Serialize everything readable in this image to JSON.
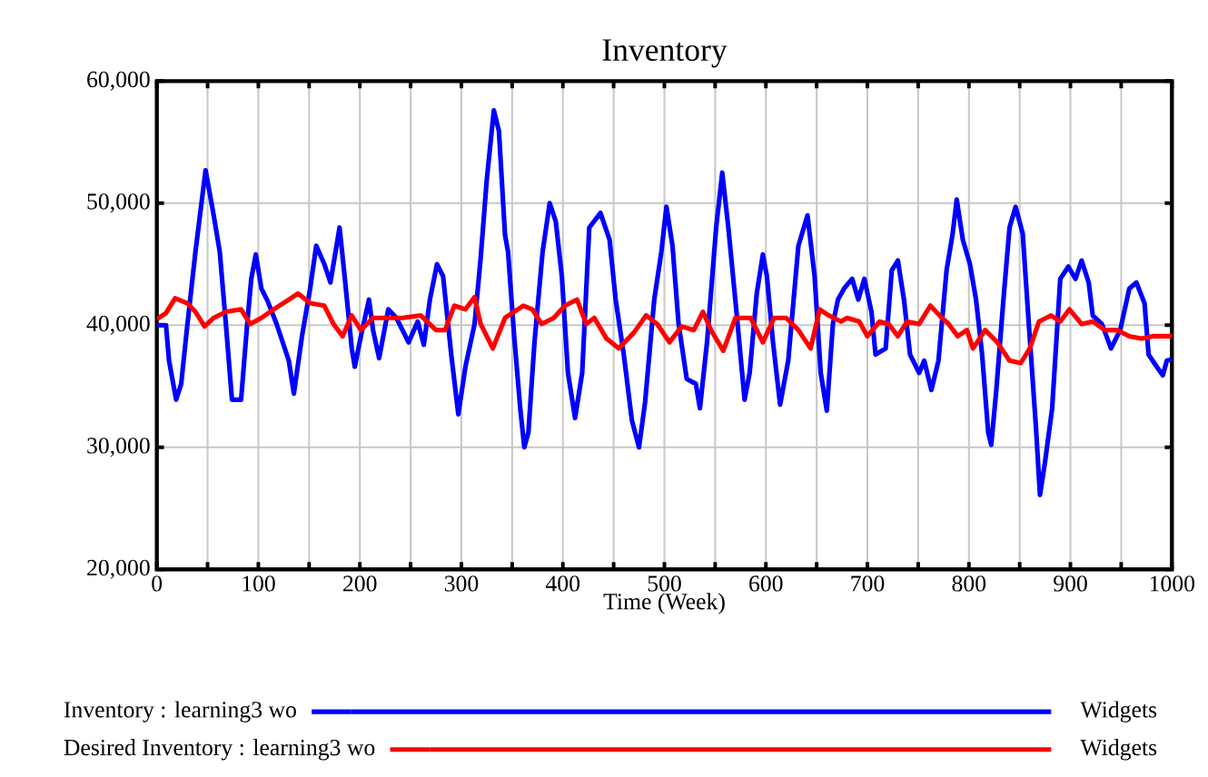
{
  "chart_data": {
    "type": "line",
    "title": "Inventory",
    "xlabel": "Time (Week)",
    "xlim": [
      0,
      1000
    ],
    "ylim": [
      20000,
      60000
    ],
    "xticks": [
      0,
      {
        "value": 50,
        "label": null
      },
      100,
      {
        "value": 150,
        "label": null
      },
      200,
      {
        "value": 250,
        "label": null
      },
      300,
      {
        "value": 350,
        "label": null
      },
      400,
      {
        "value": 450,
        "label": null
      },
      500,
      {
        "value": 550,
        "label": null
      },
      600,
      {
        "value": 650,
        "label": null
      },
      700,
      {
        "value": 750,
        "label": null
      },
      800,
      {
        "value": 850,
        "label": null
      },
      900,
      {
        "value": 950,
        "label": null
      },
      1000
    ],
    "yticks": [
      {
        "value": 20000,
        "label": "20,000"
      },
      {
        "value": 30000,
        "label": "30,000"
      },
      {
        "value": 40000,
        "label": "40,000"
      },
      {
        "value": 50000,
        "label": "50,000"
      },
      {
        "value": 60000,
        "label": "60,000"
      }
    ],
    "grid": true,
    "legend": "bottom",
    "marker": "none",
    "line_style": "solid",
    "annotations": [
      "Widgets",
      "Widgets"
    ],
    "series": [
      {
        "name": "Inventory : learning3 wo",
        "color": "#0000ff",
        "x": [
          0,
          9,
          12,
          19,
          24,
          29.5,
          38,
          48,
          56,
          62,
          68,
          74,
          83,
          89,
          93,
          97.5,
          103,
          109,
          118,
          130,
          135,
          143,
          151,
          157,
          165,
          171,
          180,
          185,
          192,
          195,
          201,
          209,
          213,
          219,
          228,
          236,
          248,
          257,
          263,
          269,
          276,
          282,
          290,
          297,
          304,
          313,
          319,
          325,
          332,
          337,
          343,
          346,
          352,
          358,
          362,
          366,
          372,
          380,
          387,
          393,
          399,
          405,
          412,
          419,
          426,
          437,
          446,
          452,
          460,
          468,
          475,
          481,
          490,
          497,
          502,
          508,
          514,
          522,
          531,
          535,
          542,
          551,
          557,
          563,
          571,
          579,
          584,
          591,
          597,
          601,
          607,
          614,
          622,
          632,
          641,
          648,
          654,
          660,
          666,
          671,
          677,
          685,
          691,
          697,
          704,
          708,
          718,
          724,
          730,
          736,
          742,
          751,
          756,
          763,
          770,
          778,
          784,
          788,
          794,
          801,
          807,
          813,
          819,
          822,
          827,
          834,
          840,
          846,
          853,
          859,
          866,
          870,
          875,
          882,
          890,
          898,
          905,
          911,
          918,
          922,
          931,
          940,
          949,
          958,
          965,
          973,
          977,
          985,
          991,
          995,
          1000
        ],
        "values": [
          40000,
          40000,
          37100,
          33900,
          35200,
          39600,
          46000,
          52700,
          49000,
          46000,
          40100,
          33900,
          33900,
          40100,
          43800,
          45800,
          43000,
          42000,
          40100,
          37100,
          34400,
          39100,
          43000,
          46500,
          45000,
          43500,
          48000,
          44000,
          38100,
          36600,
          39100,
          42100,
          39600,
          37300,
          41300,
          40600,
          38600,
          40300,
          38400,
          42100,
          45000,
          44000,
          37600,
          32700,
          36600,
          40100,
          45500,
          51900,
          57600,
          55900,
          47400,
          46000,
          39100,
          33200,
          30000,
          31200,
          38600,
          46000,
          50000,
          48500,
          44000,
          36100,
          32400,
          36100,
          48000,
          49200,
          47000,
          42100,
          37600,
          32200,
          30000,
          33700,
          42100,
          46000,
          49700,
          46500,
          40100,
          35600,
          35200,
          33200,
          38600,
          48000,
          52500,
          48000,
          41100,
          33900,
          36100,
          42600,
          45800,
          44000,
          38600,
          33500,
          37100,
          46500,
          49000,
          44000,
          36100,
          33000,
          40100,
          42100,
          43000,
          43800,
          42100,
          43800,
          41100,
          37600,
          38100,
          44500,
          45300,
          42100,
          37600,
          36100,
          37100,
          34700,
          37100,
          44500,
          47500,
          50300,
          47000,
          45000,
          42100,
          37600,
          31200,
          30200,
          34700,
          42100,
          48000,
          49700,
          47500,
          40100,
          31700,
          26100,
          28800,
          33200,
          43800,
          44800,
          43800,
          45300,
          43500,
          40800,
          40100,
          38100,
          39600,
          43000,
          43500,
          41800,
          37600,
          36600,
          35900,
          37100,
          37200
        ]
      },
      {
        "name": "Desired Inventory : learning3 wo",
        "color": "#ff0000",
        "x": [
          0,
          9,
          18,
          30,
          38,
          47,
          56,
          68,
          83,
          92,
          103,
          115,
          130,
          139,
          151,
          165,
          174,
          183,
          192,
          201,
          213,
          225,
          242,
          260,
          275,
          284,
          293,
          304,
          313,
          319,
          331,
          343,
          361,
          370,
          379,
          391,
          402,
          414,
          423,
          431,
          443,
          455,
          470,
          482,
          493,
          505,
          517,
          529,
          538,
          546,
          558,
          570,
          585,
          597,
          608,
          620,
          632,
          644,
          653,
          662,
          674,
          680,
          692,
          700,
          712,
          721,
          730,
          739,
          751,
          762,
          771,
          780,
          789,
          798,
          804,
          816,
          828,
          840,
          851,
          860,
          869,
          881,
          890,
          899,
          911,
          922,
          934,
          946,
          958,
          970,
          981,
          993,
          1000
        ],
        "values": [
          40500,
          41000,
          42200,
          41800,
          41100,
          39900,
          40600,
          41100,
          41300,
          40100,
          40600,
          41300,
          42100,
          42600,
          41800,
          41600,
          40100,
          39100,
          40800,
          39600,
          40600,
          40600,
          40600,
          40800,
          39600,
          39600,
          41600,
          41300,
          42300,
          40100,
          38100,
          40600,
          41600,
          41300,
          40100,
          40600,
          41600,
          42100,
          40100,
          40600,
          38900,
          38100,
          39400,
          40800,
          40100,
          38600,
          39900,
          39600,
          41100,
          39600,
          37900,
          40600,
          40600,
          38600,
          40600,
          40600,
          39600,
          38100,
          41300,
          40800,
          40300,
          40600,
          40300,
          39100,
          40300,
          40100,
          39100,
          40300,
          40100,
          41600,
          40800,
          40100,
          39100,
          39600,
          38100,
          39600,
          38600,
          37100,
          36900,
          38100,
          40300,
          40800,
          40300,
          41300,
          40100,
          40300,
          39600,
          39600,
          39100,
          38900,
          39100,
          39100,
          39100
        ]
      }
    ]
  }
}
